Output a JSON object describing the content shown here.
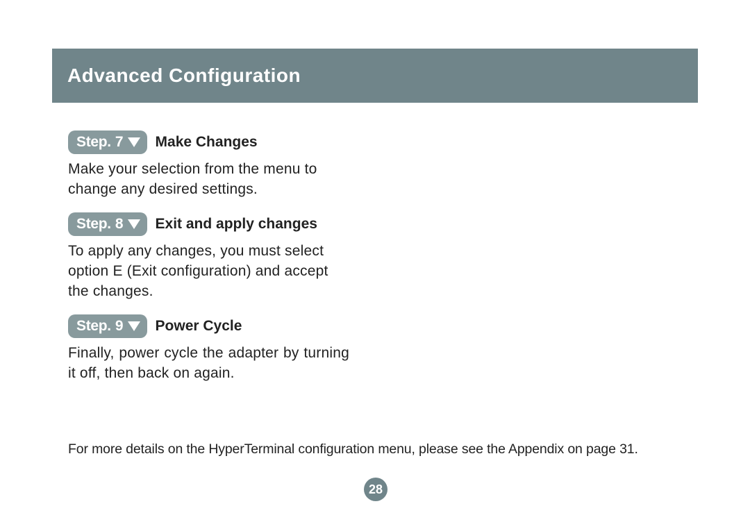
{
  "colors": {
    "header_bg": "#70858a",
    "badge_bg": "#889a9d",
    "badge_fg": "#ffffff",
    "text": "#222222",
    "page_bg": "#ffffff"
  },
  "header": {
    "title": "Advanced  Configuration"
  },
  "steps": [
    {
      "badge_prefix": "Step.",
      "number": "7",
      "title": "Make Changes",
      "body": "Make your selection from the menu to change any desired settings."
    },
    {
      "badge_prefix": "Step.",
      "number": "8",
      "title": "Exit and apply changes",
      "body": "To apply any changes, you must select option E (Exit configuration) and accept the changes."
    },
    {
      "badge_prefix": "Step.",
      "number": "9",
      "title": "Power Cycle",
      "body": "Finally, power cycle the adapter by turning it off, then back on again."
    }
  ],
  "footnote": "For more details on the HyperTerminal configuration menu, please see the Appendix on page 31.",
  "page_number": "28"
}
